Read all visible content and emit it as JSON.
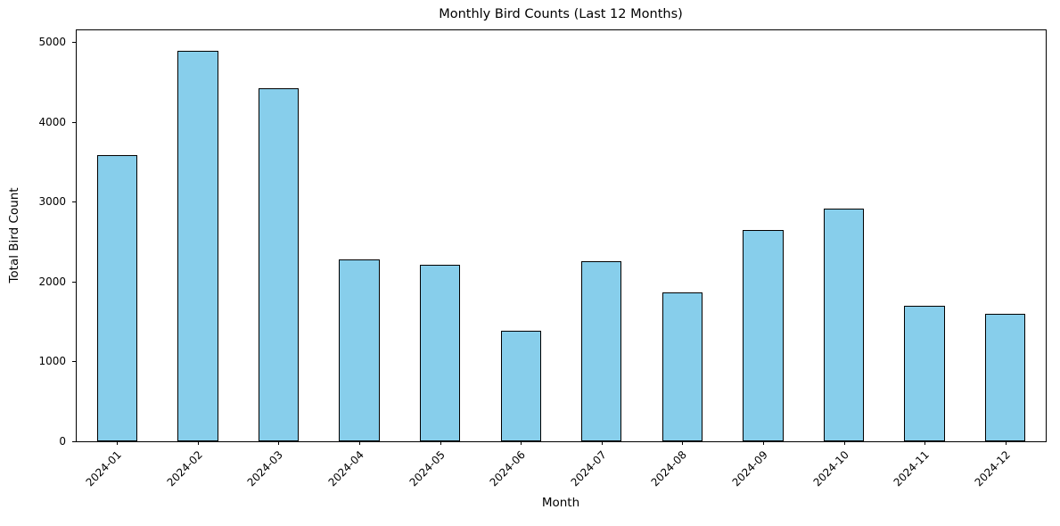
{
  "chart_data": {
    "type": "bar",
    "title": "Monthly Bird Counts (Last 12 Months)",
    "xlabel": "Month",
    "ylabel": "Total Bird Count",
    "categories": [
      "2024-01",
      "2024-02",
      "2024-03",
      "2024-04",
      "2024-05",
      "2024-06",
      "2024-07",
      "2024-08",
      "2024-09",
      "2024-10",
      "2024-11",
      "2024-12"
    ],
    "values": [
      3580,
      4890,
      4420,
      2280,
      2215,
      1385,
      2250,
      1860,
      2645,
      2910,
      1695,
      1595
    ],
    "ylim": [
      0,
      5145
    ],
    "yticks": [
      0,
      1000,
      2000,
      3000,
      4000,
      5000
    ],
    "xtick_rotation_deg": 45,
    "bar_color": "#87CEEB",
    "bar_edge_color": "#000000",
    "grid": false,
    "legend_position": "none"
  }
}
